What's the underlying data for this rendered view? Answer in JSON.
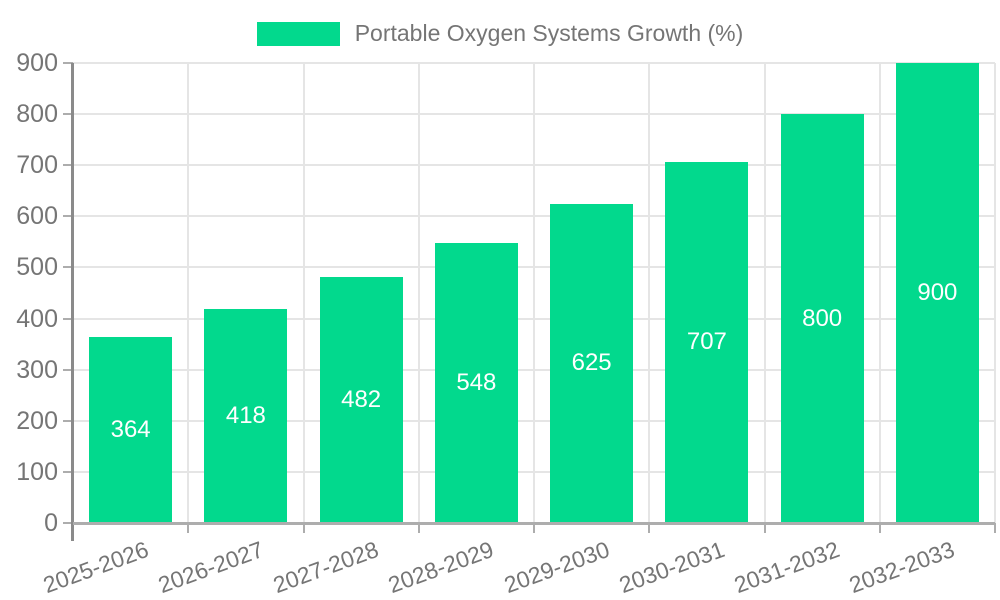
{
  "chart_data": {
    "type": "bar",
    "title": "Portable Oxygen Systems Growth (%)",
    "legend_entries": [
      "Portable Oxygen Systems Growth (%)"
    ],
    "legend_position": "top-center",
    "categories": [
      "2025-2026",
      "2026-2027",
      "2027-2028",
      "2028-2029",
      "2029-2030",
      "2030-2031",
      "2031-2032",
      "2032-2033"
    ],
    "values": [
      364,
      418,
      482,
      548,
      625,
      707,
      800,
      900
    ],
    "xlabel": "",
    "ylabel": "",
    "ylim": [
      0,
      900
    ],
    "ytick_step": 100,
    "yticks": [
      0,
      100,
      200,
      300,
      400,
      500,
      600,
      700,
      800,
      900
    ],
    "grid": true,
    "value_labels_inside_bars": true,
    "colors": {
      "bar": "#02D98D",
      "bar_label": "#FFFFFF",
      "axis_text": "#757575",
      "grid": "#E5E5E5",
      "y_axis_line": "#8A8A8A",
      "x_axis_line": "#ADADAD",
      "tick": "#ADADAD"
    }
  }
}
